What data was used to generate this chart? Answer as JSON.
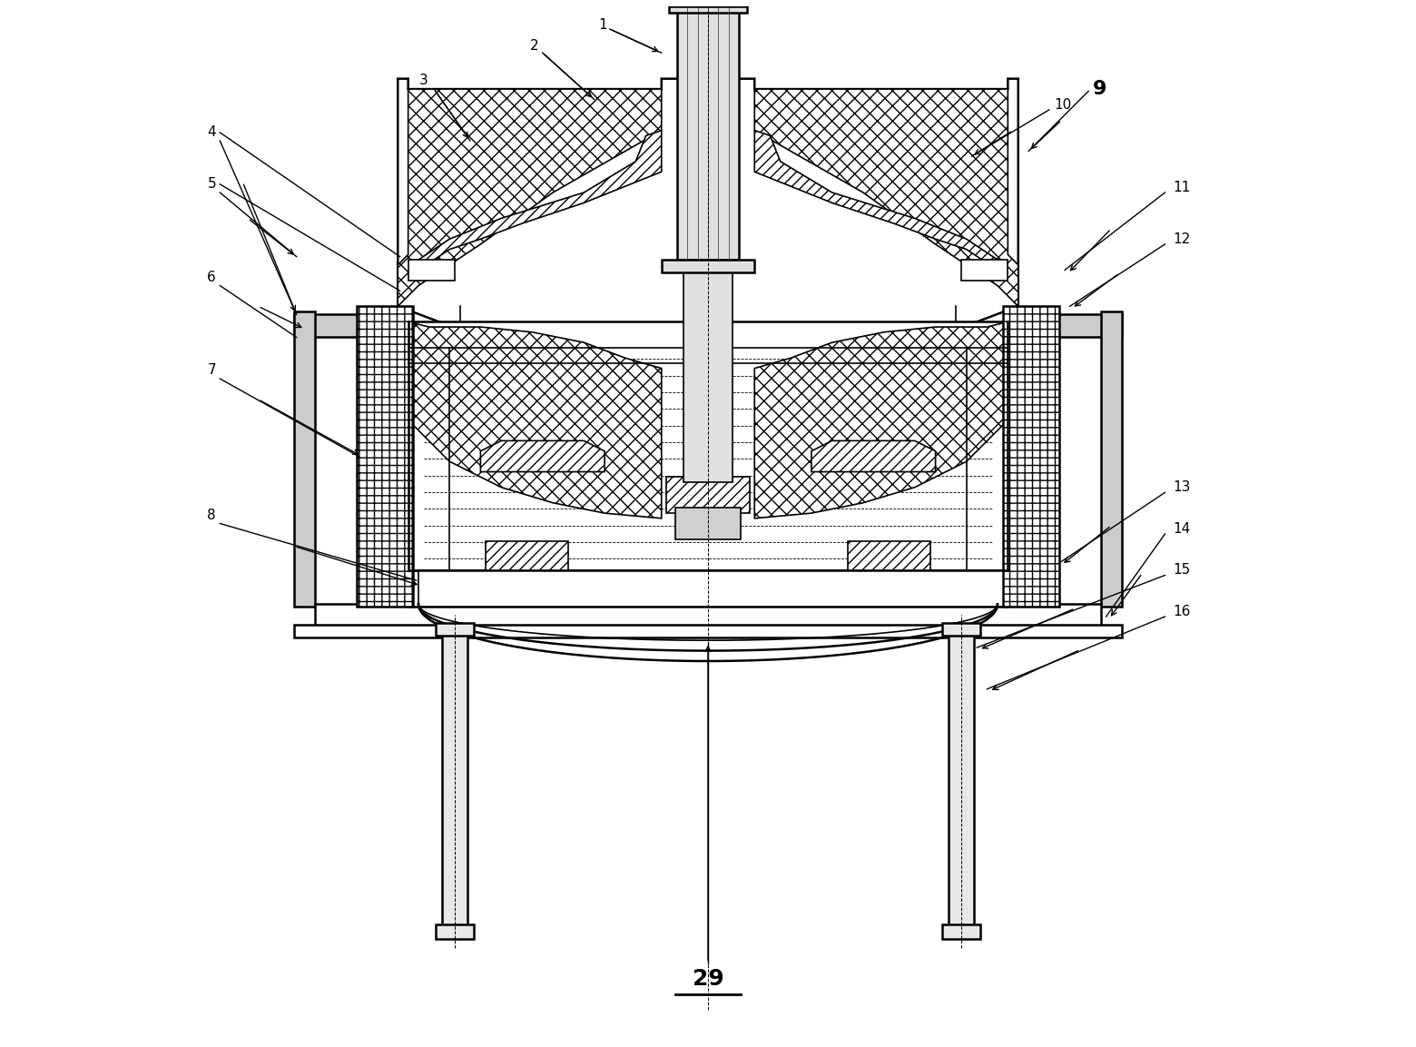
{
  "background_color": "#ffffff",
  "line_color": "#000000",
  "label_color": "#000000",
  "figsize": [
    15.6,
    11.53
  ],
  "dpi": 100
}
